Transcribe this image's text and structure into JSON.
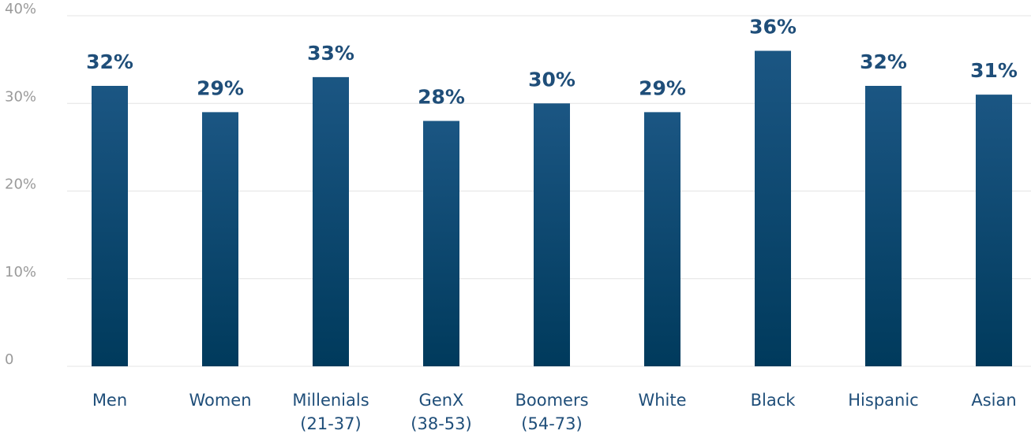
{
  "chart_data": {
    "type": "bar",
    "categories": [
      [
        "Men"
      ],
      [
        "Women"
      ],
      [
        "Millenials",
        "(21-37)"
      ],
      [
        "GenX",
        "(38-53)"
      ],
      [
        "Boomers",
        "(54-73)"
      ],
      [
        "White"
      ],
      [
        "Black"
      ],
      [
        "Hispanic"
      ],
      [
        "Asian"
      ]
    ],
    "values": [
      32,
      29,
      33,
      28,
      30,
      29,
      36,
      32,
      31
    ],
    "data_labels": [
      "32%",
      "29%",
      "33%",
      "28%",
      "30%",
      "29%",
      "36%",
      "32%",
      "31%"
    ],
    "y_ticks": [
      0,
      10,
      20,
      30,
      40
    ],
    "y_tick_labels": [
      "0",
      "10%",
      "20%",
      "30%",
      "40%"
    ],
    "ylim": [
      0,
      40
    ],
    "title": "",
    "xlabel": "",
    "ylabel": "",
    "grid": true,
    "legend": "none",
    "colors": {
      "bar_top": "#1b5683",
      "bar_bottom": "#003a5c",
      "label": "#1f4e79",
      "tick": "#9a9a9a",
      "grid": "#e4e4e4"
    }
  }
}
